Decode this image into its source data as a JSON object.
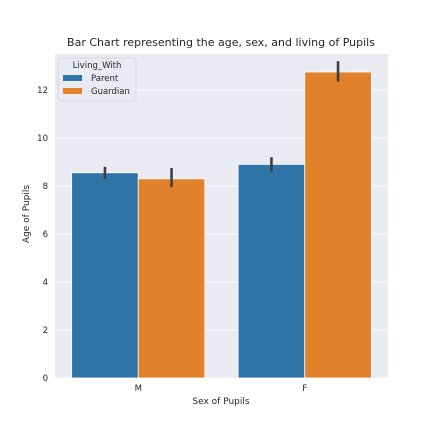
{
  "chart_data": {
    "type": "bar",
    "title": "Bar Chart representing the age, sex, and living of Pupils",
    "xlabel": "Sex of Pupils",
    "ylabel": "Age of Pupils",
    "categories": [
      "M",
      "F"
    ],
    "ylim": [
      0,
      13.5
    ],
    "yticks": [
      0,
      2,
      4,
      6,
      8,
      10,
      12
    ],
    "grid": true,
    "legend": {
      "title": "Living_With",
      "placement": "top-left"
    },
    "series": [
      {
        "name": "Parent",
        "color": "#2f74a6",
        "values": [
          8.55,
          8.9
        ],
        "ci": [
          [
            8.3,
            8.8
          ],
          [
            8.6,
            9.2
          ]
        ]
      },
      {
        "name": "Guardian",
        "color": "#e1812b",
        "values": [
          8.3,
          12.75
        ],
        "ci": [
          [
            7.95,
            8.75
          ],
          [
            12.35,
            13.2
          ]
        ]
      }
    ],
    "plot_background": "#eaeaf2",
    "errorbar_color": "#3f3f3f"
  }
}
